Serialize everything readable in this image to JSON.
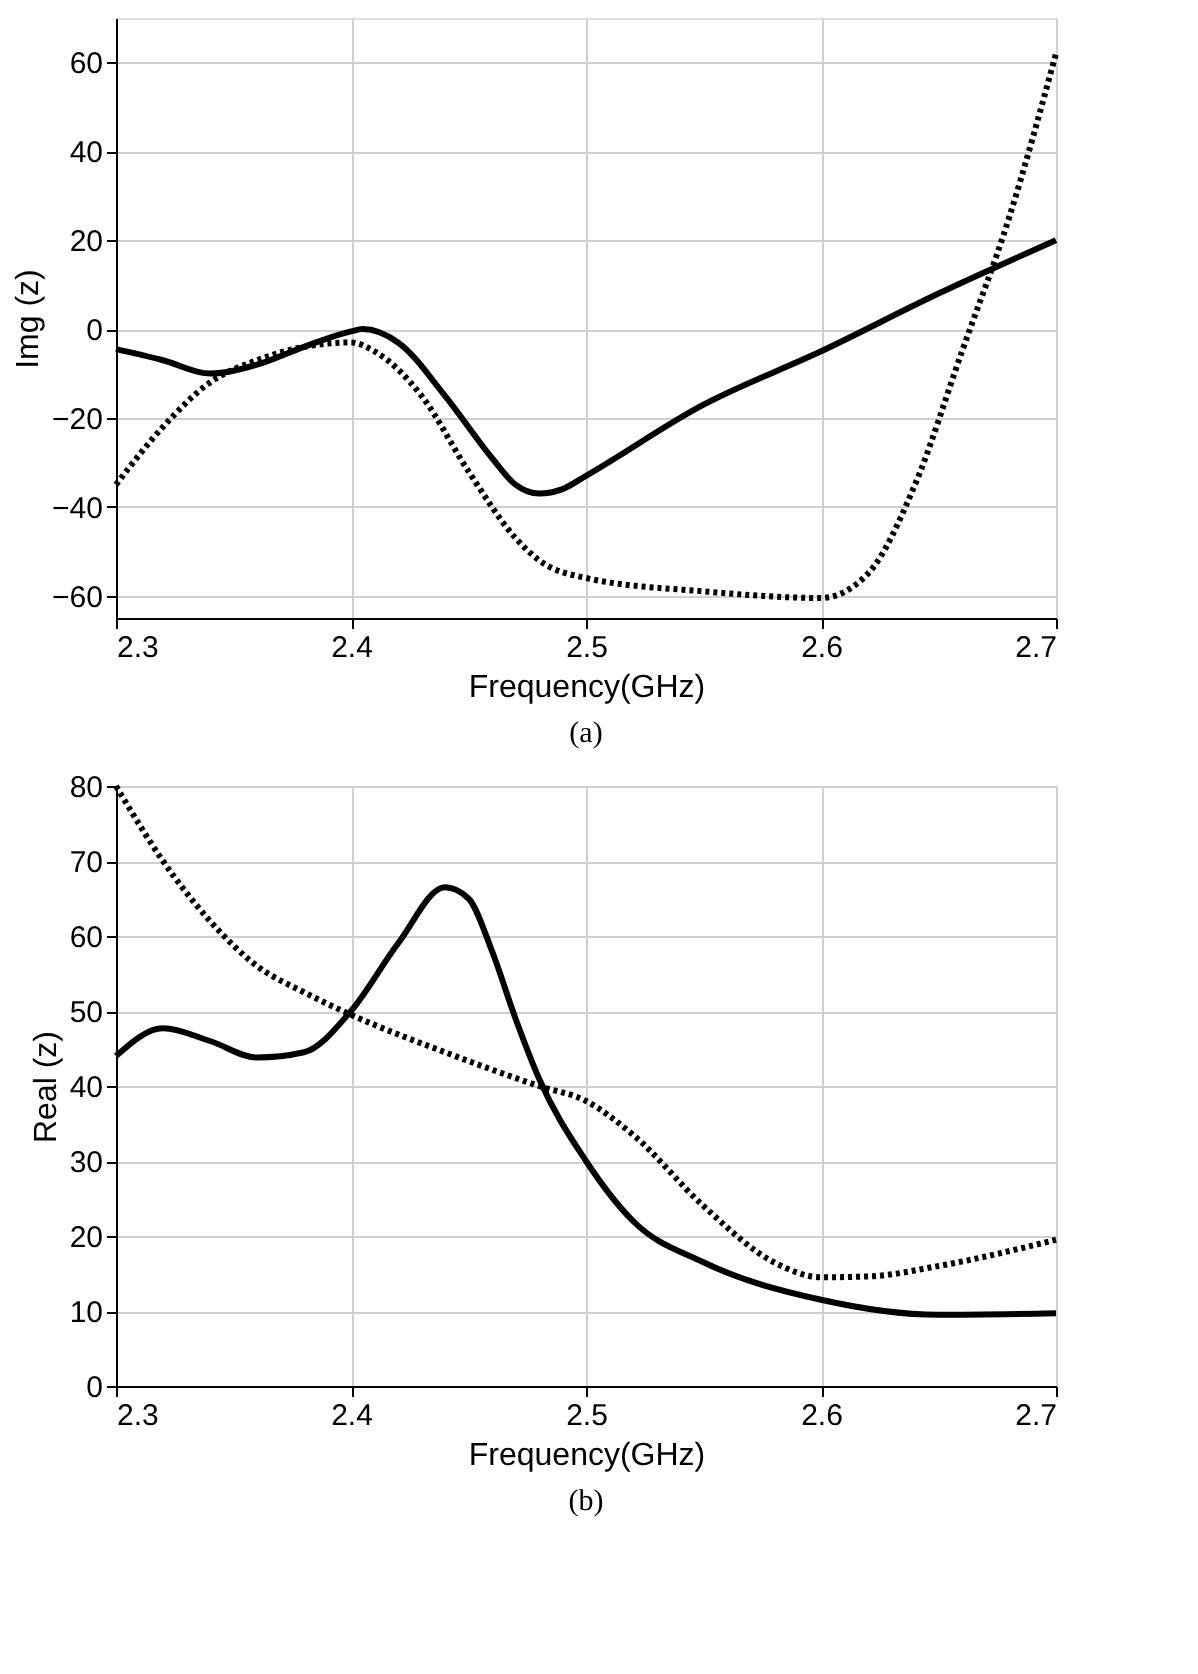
{
  "chart_data": [
    {
      "type": "line",
      "xlabel": "Frequency(GHz)",
      "ylabel": "Img (z)",
      "annotations": [
        "(a)"
      ],
      "xlim": [
        2.3,
        2.7
      ],
      "xticks": [
        2.3,
        2.4,
        2.5,
        2.6,
        2.7
      ],
      "ylim": [
        -65,
        70
      ],
      "yticks": [
        -60,
        -40,
        -20,
        0,
        20,
        40,
        60
      ],
      "grid": true,
      "series": [
        {
          "color": "#000000",
          "line_style": "solid",
          "x": [
            2.3,
            2.32,
            2.34,
            2.36,
            2.38,
            2.4,
            2.405,
            2.42,
            2.44,
            2.46,
            2.47,
            2.48,
            2.49,
            2.5,
            2.55,
            2.6,
            2.65,
            2.7
          ],
          "values": [
            -4.5,
            -7,
            -10,
            -8,
            -4,
            -0.5,
            0,
            -3,
            -15,
            -29,
            -35,
            -37,
            -36,
            -33,
            -17,
            -5,
            8,
            20
          ]
        },
        {
          "color": "#000000",
          "line_style": "dotted",
          "x": [
            2.3,
            2.32,
            2.34,
            2.36,
            2.38,
            2.4,
            2.41,
            2.43,
            2.45,
            2.47,
            2.48,
            2.5,
            2.55,
            2.6,
            2.62,
            2.64,
            2.66,
            2.68,
            2.7
          ],
          "values": [
            -35,
            -22,
            -12,
            -7,
            -4,
            -3,
            -5,
            -15,
            -32,
            -47,
            -52,
            -56,
            -59,
            -60.5,
            -55,
            -35,
            -5,
            25,
            62
          ]
        }
      ]
    },
    {
      "type": "line",
      "xlabel": "Frequency(GHz)",
      "ylabel": "Real (z)",
      "annotations": [
        "(b)"
      ],
      "xlim": [
        2.3,
        2.7
      ],
      "xticks": [
        2.3,
        2.4,
        2.5,
        2.6,
        2.7
      ],
      "ylim": [
        0,
        80
      ],
      "yticks": [
        0,
        10,
        20,
        30,
        40,
        50,
        60,
        70,
        80
      ],
      "grid": true,
      "series": [
        {
          "color": "#000000",
          "line_style": "solid",
          "x": [
            2.3,
            2.32,
            2.34,
            2.36,
            2.38,
            2.4,
            2.42,
            2.44,
            2.45,
            2.46,
            2.47,
            2.48,
            2.5,
            2.52,
            2.55,
            2.6,
            2.65,
            2.7
          ],
          "values": [
            44,
            47.7,
            46,
            43.8,
            44.5,
            50,
            59,
            66.5,
            65,
            58,
            49,
            41,
            30,
            22,
            16.5,
            11.5,
            9.5,
            9.7
          ]
        },
        {
          "color": "#000000",
          "line_style": "dotted",
          "x": [
            2.3,
            2.32,
            2.34,
            2.36,
            2.38,
            2.4,
            2.44,
            2.48,
            2.5,
            2.52,
            2.55,
            2.58,
            2.6,
            2.62,
            2.65,
            2.7
          ],
          "values": [
            80,
            70,
            62,
            56,
            52.5,
            49.5,
            44.5,
            40,
            38,
            33.5,
            24,
            16.5,
            14.5,
            14.6,
            16,
            19.5
          ]
        }
      ]
    }
  ]
}
